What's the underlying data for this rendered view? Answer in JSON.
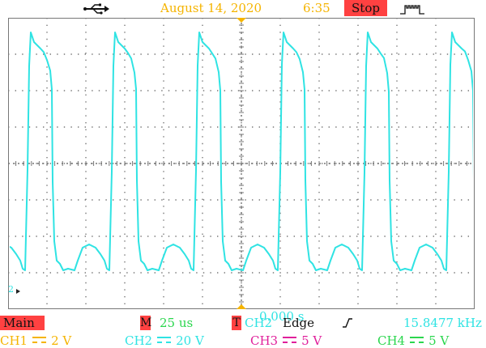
{
  "header": {
    "usb_icon": "usb-icon",
    "date": "August 14, 2020",
    "time": "6:35",
    "run_state": "Stop",
    "trigger_icon": "trigger-waveform-icon"
  },
  "screen": {
    "channel_marker": "2",
    "trigger_time": "0.000 s",
    "grid_color": "#777777",
    "trace_color": "#2fe3e3",
    "trigger_marker_color": "#f5b400"
  },
  "footer": {
    "main_label": "Main",
    "timebase_label": "M",
    "timebase_value": "25 us",
    "trigger_label": "T",
    "trigger_source": "CH2",
    "trigger_type": "Edge",
    "trigger_slope_icon": "rising-edge-icon",
    "frequency": "15.8477 kHz",
    "channels": [
      {
        "name": "CH1",
        "scale": "2 V",
        "color": "#f5b400"
      },
      {
        "name": "CH2",
        "scale": "20 V",
        "color": "#2fe3e3"
      },
      {
        "name": "CH3",
        "scale": "5 V",
        "color": "#e0209b"
      },
      {
        "name": "CH4",
        "scale": "5 V",
        "color": "#2bd64e"
      }
    ]
  },
  "accent_colors": {
    "badge": "#ff4141",
    "timebase": "#2bd64e"
  }
}
